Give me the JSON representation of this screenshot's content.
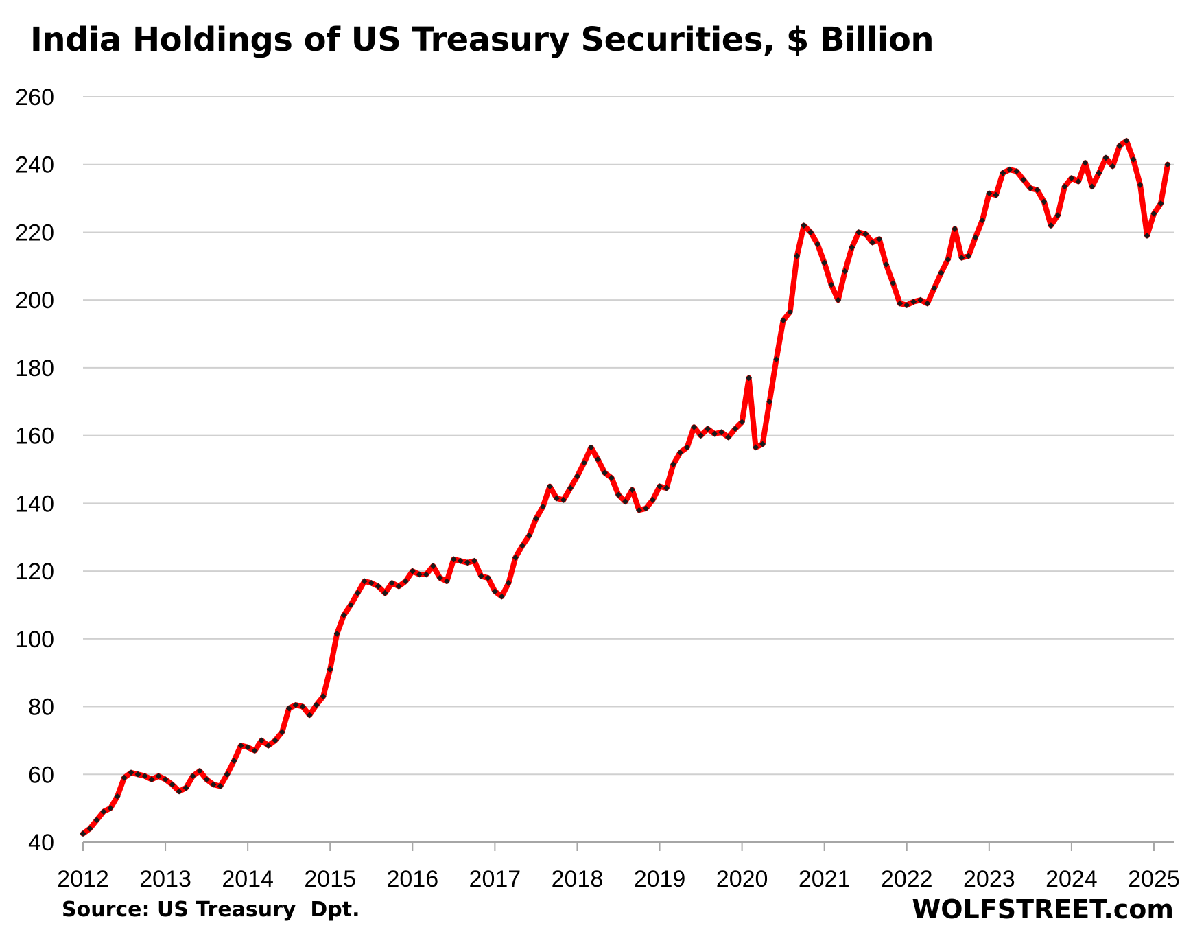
{
  "chart_data": {
    "type": "line",
    "title": "India Holdings of US Treasury Securities, $ Billion",
    "xlabel": "",
    "ylabel": "",
    "ylim": [
      40,
      260
    ],
    "yticks": [
      "40",
      "60",
      "80",
      "100",
      "120",
      "140",
      "160",
      "180",
      "200",
      "220",
      "240",
      "260"
    ],
    "xlim": [
      "2012-01",
      "2025-04"
    ],
    "xticks": [
      "2012",
      "2013",
      "2014",
      "2015",
      "2016",
      "2017",
      "2018",
      "2019",
      "2020",
      "2021",
      "2022",
      "2023",
      "2024",
      "2025"
    ],
    "grid": "horizontal",
    "legend": "none",
    "series": [
      {
        "color": "#ff0000",
        "marker_color": "#1a1a1a",
        "points": [
          [
            "2012-01",
            42.5
          ],
          [
            "2012-02",
            44.0
          ],
          [
            "2012-03",
            46.5
          ],
          [
            "2012-04",
            49.0
          ],
          [
            "2012-05",
            50.0
          ],
          [
            "2012-06",
            53.5
          ],
          [
            "2012-07",
            59.0
          ],
          [
            "2012-08",
            60.5
          ],
          [
            "2012-09",
            60.0
          ],
          [
            "2012-10",
            59.5
          ],
          [
            "2012-11",
            58.5
          ],
          [
            "2012-12",
            59.5
          ],
          [
            "2013-01",
            58.5
          ],
          [
            "2013-02",
            57.0
          ],
          [
            "2013-03",
            55.0
          ],
          [
            "2013-04",
            56.0
          ],
          [
            "2013-05",
            59.5
          ],
          [
            "2013-06",
            61.0
          ],
          [
            "2013-07",
            58.5
          ],
          [
            "2013-08",
            57.0
          ],
          [
            "2013-09",
            56.5
          ],
          [
            "2013-10",
            60.0
          ],
          [
            "2013-11",
            64.0
          ],
          [
            "2013-12",
            68.5
          ],
          [
            "2014-01",
            68.0
          ],
          [
            "2014-02",
            67.0
          ],
          [
            "2014-03",
            70.0
          ],
          [
            "2014-04",
            68.5
          ],
          [
            "2014-05",
            70.0
          ],
          [
            "2014-06",
            72.5
          ],
          [
            "2014-07",
            79.5
          ],
          [
            "2014-08",
            80.5
          ],
          [
            "2014-09",
            80.0
          ],
          [
            "2014-10",
            77.5
          ],
          [
            "2014-11",
            80.5
          ],
          [
            "2014-12",
            83.0
          ],
          [
            "2015-01",
            91.0
          ],
          [
            "2015-02",
            101.5
          ],
          [
            "2015-03",
            107.0
          ],
          [
            "2015-04",
            110.0
          ],
          [
            "2015-05",
            113.5
          ],
          [
            "2015-06",
            117.0
          ],
          [
            "2015-07",
            116.5
          ],
          [
            "2015-08",
            115.5
          ],
          [
            "2015-09",
            113.5
          ],
          [
            "2015-10",
            116.5
          ],
          [
            "2015-11",
            115.5
          ],
          [
            "2015-12",
            117.0
          ],
          [
            "2016-01",
            120.0
          ],
          [
            "2016-02",
            119.0
          ],
          [
            "2016-03",
            119.0
          ],
          [
            "2016-04",
            121.5
          ],
          [
            "2016-05",
            118.0
          ],
          [
            "2016-06",
            117.0
          ],
          [
            "2016-07",
            123.5
          ],
          [
            "2016-08",
            123.0
          ],
          [
            "2016-09",
            122.5
          ],
          [
            "2016-10",
            123.0
          ],
          [
            "2016-11",
            118.5
          ],
          [
            "2016-12",
            118.0
          ],
          [
            "2017-01",
            114.0
          ],
          [
            "2017-02",
            112.5
          ],
          [
            "2017-03",
            116.5
          ],
          [
            "2017-04",
            124.0
          ],
          [
            "2017-05",
            127.5
          ],
          [
            "2017-06",
            130.5
          ],
          [
            "2017-07",
            135.5
          ],
          [
            "2017-08",
            139.0
          ],
          [
            "2017-09",
            145.0
          ],
          [
            "2017-10",
            141.5
          ],
          [
            "2017-11",
            141.0
          ],
          [
            "2017-12",
            144.5
          ],
          [
            "2018-01",
            148.0
          ],
          [
            "2018-02",
            152.0
          ],
          [
            "2018-03",
            156.5
          ],
          [
            "2018-04",
            153.0
          ],
          [
            "2018-05",
            149.0
          ],
          [
            "2018-06",
            147.5
          ],
          [
            "2018-07",
            142.5
          ],
          [
            "2018-08",
            140.5
          ],
          [
            "2018-09",
            144.0
          ],
          [
            "2018-10",
            138.0
          ],
          [
            "2018-11",
            138.5
          ],
          [
            "2018-12",
            141.0
          ],
          [
            "2019-01",
            145.0
          ],
          [
            "2019-02",
            144.5
          ],
          [
            "2019-03",
            151.5
          ],
          [
            "2019-04",
            155.0
          ],
          [
            "2019-05",
            156.5
          ],
          [
            "2019-06",
            162.5
          ],
          [
            "2019-07",
            160.0
          ],
          [
            "2019-08",
            162.0
          ],
          [
            "2019-09",
            160.5
          ],
          [
            "2019-10",
            161.0
          ],
          [
            "2019-11",
            159.5
          ],
          [
            "2019-12",
            162.0
          ],
          [
            "2020-01",
            164.0
          ],
          [
            "2020-02",
            177.0
          ],
          [
            "2020-03",
            156.5
          ],
          [
            "2020-04",
            157.5
          ],
          [
            "2020-05",
            170.0
          ],
          [
            "2020-06",
            182.5
          ],
          [
            "2020-07",
            194.0
          ],
          [
            "2020-08",
            196.5
          ],
          [
            "2020-09",
            213.0
          ],
          [
            "2020-10",
            222.0
          ],
          [
            "2020-11",
            220.0
          ],
          [
            "2020-12",
            216.5
          ],
          [
            "2021-01",
            211.0
          ],
          [
            "2021-02",
            204.5
          ],
          [
            "2021-03",
            200.0
          ],
          [
            "2021-04",
            208.5
          ],
          [
            "2021-05",
            215.5
          ],
          [
            "2021-06",
            220.0
          ],
          [
            "2021-07",
            219.5
          ],
          [
            "2021-08",
            217.0
          ],
          [
            "2021-09",
            218.0
          ],
          [
            "2021-10",
            210.5
          ],
          [
            "2021-11",
            205.0
          ],
          [
            "2021-12",
            199.0
          ],
          [
            "2022-01",
            198.5
          ],
          [
            "2022-02",
            199.5
          ],
          [
            "2022-03",
            200.0
          ],
          [
            "2022-04",
            199.0
          ],
          [
            "2022-05",
            203.5
          ],
          [
            "2022-06",
            208.0
          ],
          [
            "2022-07",
            212.0
          ],
          [
            "2022-08",
            221.0
          ],
          [
            "2022-09",
            212.5
          ],
          [
            "2022-10",
            213.0
          ],
          [
            "2022-11",
            218.5
          ],
          [
            "2022-12",
            223.5
          ],
          [
            "2023-01",
            231.5
          ],
          [
            "2023-02",
            231.0
          ],
          [
            "2023-03",
            237.5
          ],
          [
            "2023-04",
            238.5
          ],
          [
            "2023-05",
            238.0
          ],
          [
            "2023-06",
            235.5
          ],
          [
            "2023-07",
            233.0
          ],
          [
            "2023-08",
            232.5
          ],
          [
            "2023-09",
            229.0
          ],
          [
            "2023-10",
            222.0
          ],
          [
            "2023-11",
            225.0
          ],
          [
            "2023-12",
            233.5
          ],
          [
            "2024-01",
            236.0
          ],
          [
            "2024-02",
            235.0
          ],
          [
            "2024-03",
            240.5
          ],
          [
            "2024-04",
            233.5
          ],
          [
            "2024-05",
            237.5
          ],
          [
            "2024-06",
            242.0
          ],
          [
            "2024-07",
            239.5
          ],
          [
            "2024-08",
            245.5
          ],
          [
            "2024-09",
            247.0
          ],
          [
            "2024-10",
            241.5
          ],
          [
            "2024-11",
            234.0
          ],
          [
            "2024-12",
            219.0
          ],
          [
            "2025-01",
            225.5
          ],
          [
            "2025-02",
            228.5
          ],
          [
            "2025-03",
            240.0
          ]
        ]
      }
    ]
  },
  "footer": {
    "source": "Source: US Treasury  Dpt.",
    "brand": "WOLFSTREET.com"
  }
}
